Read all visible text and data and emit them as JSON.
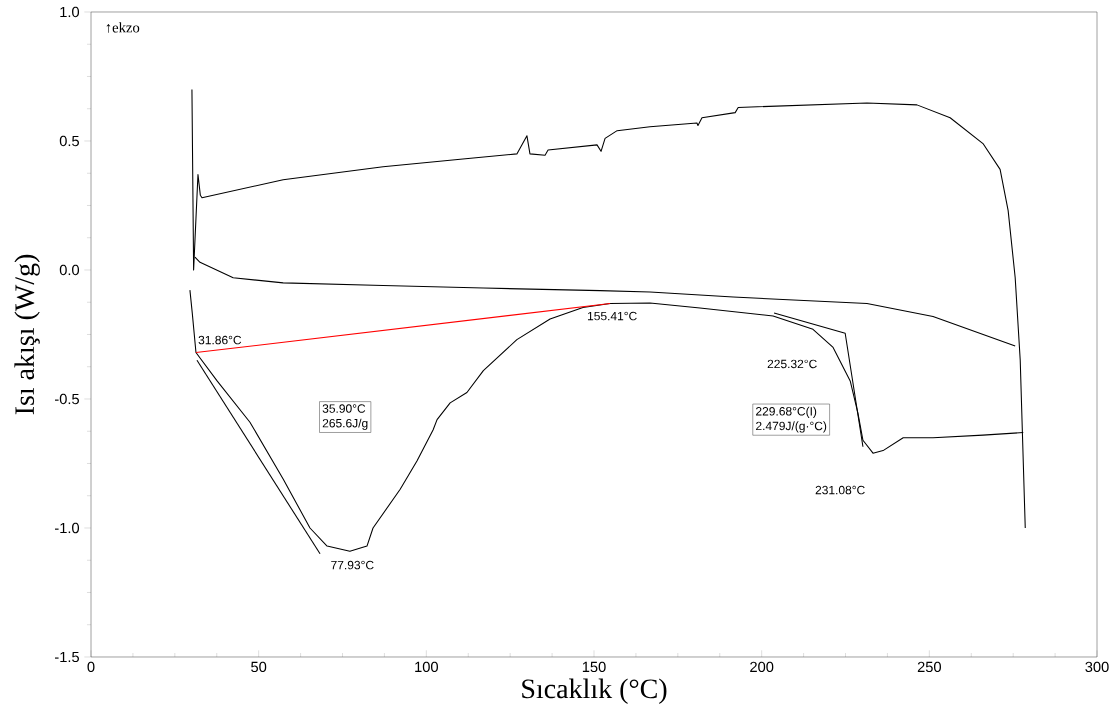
{
  "chart_data": {
    "type": "line",
    "xlabel": "Sıcaklık (°C)",
    "ylabel": "Isı akışı (W/g)",
    "xlim": [
      0,
      300
    ],
    "xticks": [
      0,
      50,
      100,
      150,
      200,
      250,
      300
    ],
    "ylim": [
      -1.5,
      1.0
    ],
    "yticks": [
      {
        "value": -1.5,
        "label": "-1.5"
      },
      {
        "value": -1.0,
        "label": "-1.0"
      },
      {
        "value": -0.5,
        "label": "-0.5"
      },
      {
        "value": 0.0,
        "label": "0.0"
      },
      {
        "value": 0.5,
        "label": "0.5"
      },
      {
        "value": 1.0,
        "label": "1.0"
      }
    ],
    "grid": false,
    "marker": "none",
    "line_style": "solid",
    "series": [
      {
        "color": "#000000",
        "x": [
          30.1,
          30.6,
          31.3,
          31.9,
          32.6,
          33.1,
          57.3,
          87.1,
          110.9,
          127.0,
          130.0,
          130.9,
          135.4,
          136.3,
          150.9,
          152.1,
          153.3,
          156.9,
          166.7,
          180.7,
          181.0,
          182.2,
          192.1,
          193.0,
          231.4,
          246.3,
          256.2,
          266.0,
          271.1,
          273.5,
          275.6,
          277.1,
          278.6
        ],
        "values": [
          0.7,
          0.0,
          0.2,
          0.37,
          0.29,
          0.28,
          0.35,
          0.4,
          0.43,
          0.45,
          0.52,
          0.45,
          0.445,
          0.465,
          0.485,
          0.46,
          0.51,
          0.54,
          0.555,
          0.57,
          0.56,
          0.59,
          0.61,
          0.63,
          0.647,
          0.64,
          0.59,
          0.49,
          0.39,
          0.23,
          -0.03,
          -0.35,
          -1.0
        ]
      },
      {
        "color": "#000000",
        "x": [
          31.0,
          32.5,
          42.4,
          57.3,
          87.1,
          117.0,
          151.8,
          166.7,
          191.5,
          231.4,
          251.1,
          275.6
        ],
        "values": [
          0.05,
          0.03,
          -0.03,
          -0.05,
          -0.06,
          -0.07,
          -0.08,
          -0.085,
          -0.105,
          -0.13,
          -0.18,
          -0.295
        ]
      },
      {
        "color": "#000000",
        "x": [
          29.5,
          30.2,
          31.3,
          37.6,
          47.4,
          57.3,
          65.3,
          70.4,
          77.2,
          82.3,
          84.1,
          92.2,
          97.2,
          102.0,
          103.2,
          107.1,
          112.1,
          117.0,
          127.0,
          136.9,
          146.7,
          154.8,
          166.7,
          181.6,
          203.4,
          215.3,
          221.3,
          226.4,
          228.7,
          230.2,
          233.2,
          236.2,
          242.2,
          251.1,
          266.0,
          278.0
        ],
        "values": [
          -0.078,
          -0.167,
          -0.32,
          -0.43,
          -0.59,
          -0.81,
          -1.0,
          -1.07,
          -1.09,
          -1.07,
          -1.0,
          -0.85,
          -0.74,
          -0.62,
          -0.58,
          -0.515,
          -0.475,
          -0.39,
          -0.27,
          -0.19,
          -0.145,
          -0.13,
          -0.128,
          -0.147,
          -0.178,
          -0.23,
          -0.3,
          -0.43,
          -0.555,
          -0.66,
          -0.71,
          -0.7,
          -0.65,
          -0.65,
          -0.64,
          -0.63
        ]
      },
      {
        "color": "#ff0000",
        "x": [
          31.3,
          154.8
        ],
        "values": [
          -0.32,
          -0.13
        ]
      },
      {
        "color": "#000000",
        "x": [
          31.6,
          68.3
        ],
        "values": [
          -0.35,
          -1.1
        ]
      },
      {
        "color": "#000000",
        "x": [
          203.7,
          224.9,
          230.2
        ],
        "values": [
          -0.167,
          -0.245,
          -0.685
        ]
      }
    ],
    "annotations": [
      "↑ekzo",
      {
        "text": "31.86°C",
        "x": 31.86,
        "y": -0.32
      },
      {
        "text": "155.41°C",
        "x": 155.41,
        "y": -0.13
      },
      {
        "text": "77.93°C",
        "x": 77.93,
        "y": -1.09
      },
      "225.32°C",
      "231.08°C",
      "35.90°C",
      "265.6J/g",
      "229.68°C(I)",
      "2.479J/(g·°C)"
    ]
  }
}
